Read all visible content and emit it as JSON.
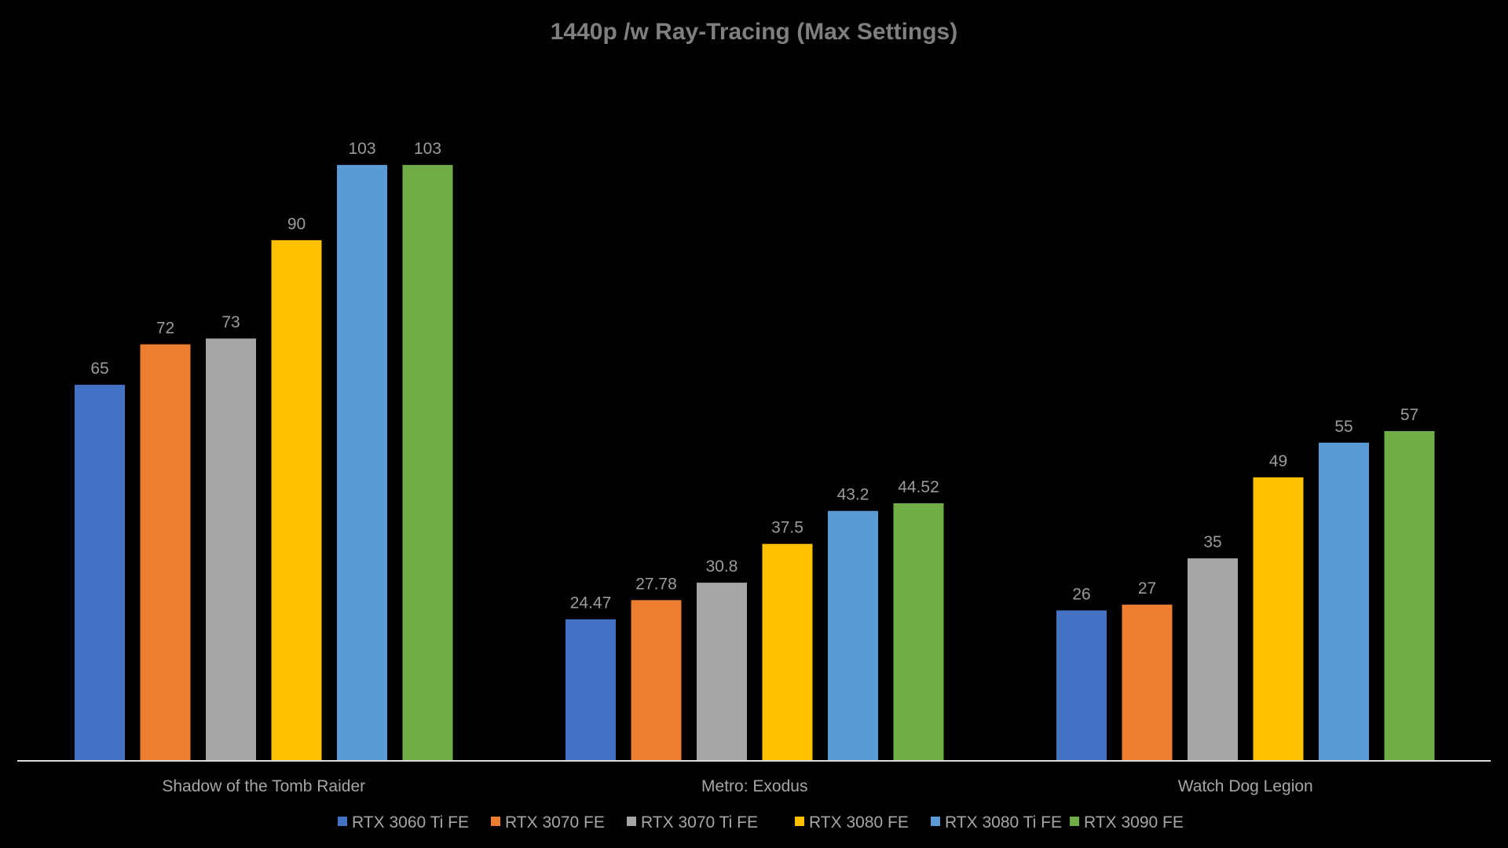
{
  "chart_data": {
    "type": "bar",
    "title": "1440p /w Ray-Tracing (Max Settings)",
    "xlabel": "",
    "ylabel": "",
    "ylim": [
      0,
      110
    ],
    "grid": false,
    "legend_position": "bottom",
    "categories": [
      "Shadow of the Tomb Raider",
      "Metro: Exodus",
      "Watch Dog Legion"
    ],
    "series": [
      {
        "name": "RTX 3060 Ti FE",
        "color": "#4472c4",
        "values": [
          65,
          24.47,
          26
        ],
        "labels": [
          "65",
          "24.47",
          "26"
        ]
      },
      {
        "name": "RTX 3070 FE",
        "color": "#ed7d31",
        "values": [
          72,
          27.78,
          27
        ],
        "labels": [
          "72",
          "27.78",
          "27"
        ]
      },
      {
        "name": "RTX 3070 Ti FE",
        "color": "#a5a5a5",
        "values": [
          73,
          30.8,
          35
        ],
        "labels": [
          "73",
          "30.8",
          "35"
        ]
      },
      {
        "name": "RTX 3080 FE",
        "color": "#ffc000",
        "values": [
          90,
          37.5,
          49
        ],
        "labels": [
          "90",
          "37.5",
          "49"
        ]
      },
      {
        "name": "RTX 3080 Ti FE",
        "color": "#5b9bd5",
        "values": [
          103,
          43.2,
          55
        ],
        "labels": [
          "103",
          "43.2",
          "55"
        ]
      },
      {
        "name": "RTX 3090 FE",
        "color": "#70ad47",
        "values": [
          103,
          44.52,
          57
        ],
        "labels": [
          "103",
          "44.52",
          "57"
        ]
      }
    ]
  }
}
